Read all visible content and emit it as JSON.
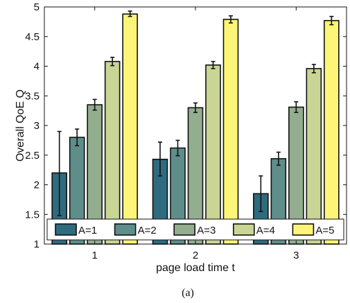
{
  "chart_data": {
    "type": "bar",
    "categories": [
      "1",
      "2",
      "3"
    ],
    "xlabel": "page load time t",
    "ylabel": "Overall QoE Q",
    "ylim": [
      1,
      5
    ],
    "yticks": [
      "1",
      "1.5",
      "2",
      "2.5",
      "3",
      "3.5",
      "4",
      "4.5",
      "5"
    ],
    "legend_placement": "bottom",
    "grid": false,
    "series": [
      {
        "name": "A=1",
        "color": "#2e6b7e",
        "values": [
          2.2,
          2.43,
          1.85
        ],
        "err_low": [
          1.48,
          2.15,
          1.55
        ],
        "err_high": [
          2.9,
          2.72,
          2.15
        ]
      },
      {
        "name": "A=2",
        "color": "#5f8e8a",
        "values": [
          2.8,
          2.62,
          2.44
        ],
        "err_low": [
          2.66,
          2.49,
          2.33
        ],
        "err_high": [
          2.94,
          2.75,
          2.55
        ]
      },
      {
        "name": "A=3",
        "color": "#93ae8e",
        "values": [
          3.35,
          3.3,
          3.31
        ],
        "err_low": [
          3.26,
          3.22,
          3.22
        ],
        "err_high": [
          3.44,
          3.38,
          3.4
        ]
      },
      {
        "name": "A=4",
        "color": "#c8d594",
        "values": [
          4.08,
          4.02,
          3.96
        ],
        "err_low": [
          4.01,
          3.96,
          3.89
        ],
        "err_high": [
          4.15,
          4.08,
          4.03
        ]
      },
      {
        "name": "A=5",
        "color": "#fdf577",
        "values": [
          4.88,
          4.79,
          4.77
        ],
        "err_low": [
          4.84,
          4.73,
          4.7
        ],
        "err_high": [
          4.93,
          4.85,
          4.84
        ]
      }
    ]
  },
  "caption": "(a)"
}
